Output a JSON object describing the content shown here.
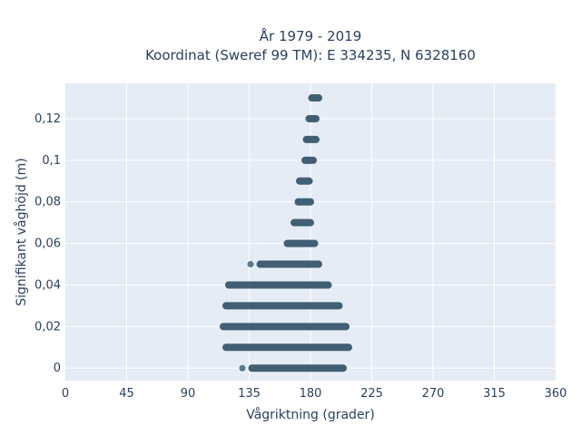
{
  "chart_data": {
    "type": "scatter",
    "title": "År 1979 - 2019",
    "subtitle": "Koordinat (Sweref 99 TM): E 334235, N 6328160",
    "xlabel": "Vågriktning (grader)",
    "ylabel": "Signifikant våghöjd (m)",
    "xlim": [
      0,
      360
    ],
    "ylim": [
      -0.006,
      0.137
    ],
    "x_ticks": [
      0,
      45,
      90,
      135,
      180,
      225,
      270,
      315,
      360
    ],
    "x_tick_labels": [
      "0",
      "45",
      "90",
      "135",
      "180",
      "225",
      "270",
      "315",
      "360"
    ],
    "y_ticks": [
      0,
      0.02,
      0.04,
      0.06,
      0.08,
      0.1,
      0.12
    ],
    "y_tick_labels": [
      "0",
      "0,02",
      "0,04",
      "0,06",
      "0,08",
      "0,1",
      "0,12"
    ],
    "grid": true,
    "marker_color": "#2f4f66",
    "bands": [
      {
        "y": 0.0,
        "x_min": 137,
        "x_max": 204
      },
      {
        "y": 0.01,
        "x_min": 118,
        "x_max": 208
      },
      {
        "y": 0.02,
        "x_min": 116,
        "x_max": 206
      },
      {
        "y": 0.03,
        "x_min": 118,
        "x_max": 201
      },
      {
        "y": 0.04,
        "x_min": 120,
        "x_max": 193
      },
      {
        "y": 0.05,
        "x_min": 143,
        "x_max": 186
      },
      {
        "y": 0.06,
        "x_min": 163,
        "x_max": 183
      },
      {
        "y": 0.07,
        "x_min": 168,
        "x_max": 180
      },
      {
        "y": 0.08,
        "x_min": 171,
        "x_max": 180
      },
      {
        "y": 0.09,
        "x_min": 172,
        "x_max": 179
      },
      {
        "y": 0.1,
        "x_min": 176,
        "x_max": 182
      },
      {
        "y": 0.11,
        "x_min": 177,
        "x_max": 184
      },
      {
        "y": 0.12,
        "x_min": 179,
        "x_max": 184
      },
      {
        "y": 0.13,
        "x_min": 181,
        "x_max": 186
      }
    ],
    "outliers": [
      {
        "x": 130,
        "y": 0.0
      },
      {
        "x": 136,
        "y": 0.05
      }
    ]
  }
}
